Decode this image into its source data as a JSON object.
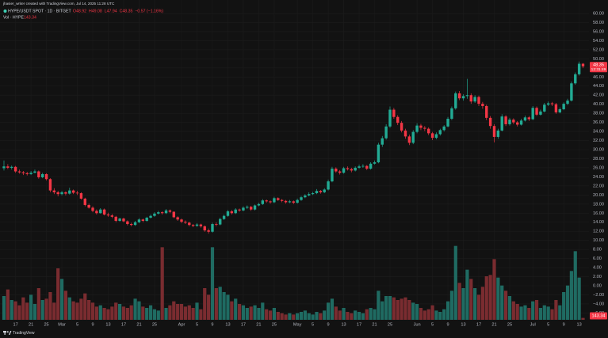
{
  "chart_data": {
    "type": "candlestick",
    "creator_line": "jhasier_writer created with TradingView.com, Jul 14, 2025 11:28 UTC",
    "symbol_line": "HYPE/USDT SPOT · 1D · BITGET",
    "ohlc_text": [
      "O48.92",
      "H49.08",
      "L47.94",
      "C48.35",
      "−0.57 (−1.16%)"
    ],
    "volume_label": "Vol · HYPE",
    "countdown": "12:31:49",
    "footer_brand": "TradingView",
    "up_color": "#22ab94",
    "down_color": "#f23645",
    "volume_up_color": "#1f6b62",
    "volume_down_color": "#7a2c30",
    "grid": true,
    "ylim": [
      -7.5,
      60.7
    ],
    "yticks": [
      {
        "value": 60,
        "label": "60.00"
      },
      {
        "value": 58,
        "label": "58.00"
      },
      {
        "value": 56,
        "label": "56.00"
      },
      {
        "value": 54,
        "label": "54.00"
      },
      {
        "value": 52,
        "label": "52.00"
      },
      {
        "value": 50,
        "label": "50.00"
      },
      {
        "value": 48,
        "label": "48.00"
      },
      {
        "value": 46,
        "label": "46.00"
      },
      {
        "value": 44,
        "label": "44.00"
      },
      {
        "value": 42,
        "label": "42.00"
      },
      {
        "value": 40,
        "label": "40.00"
      },
      {
        "value": 38,
        "label": "38.00"
      },
      {
        "value": 36,
        "label": "36.00"
      },
      {
        "value": 34,
        "label": "34.00"
      },
      {
        "value": 32,
        "label": "32.00"
      },
      {
        "value": 30,
        "label": "30.00"
      },
      {
        "value": 28,
        "label": "28.00"
      },
      {
        "value": 26,
        "label": "26.00"
      },
      {
        "value": 24,
        "label": "24.00"
      },
      {
        "value": 22,
        "label": "22.00"
      },
      {
        "value": 20,
        "label": "20.00"
      },
      {
        "value": 18,
        "label": "18.00"
      },
      {
        "value": 16,
        "label": "16.00"
      },
      {
        "value": 14,
        "label": "14.00"
      },
      {
        "value": 12,
        "label": "12.00"
      },
      {
        "value": 10,
        "label": "10.00"
      },
      {
        "value": 8,
        "label": "8.00"
      },
      {
        "value": 6,
        "label": "6.00"
      },
      {
        "value": 4,
        "label": "4.00"
      },
      {
        "value": 2,
        "label": "2.00"
      },
      {
        "value": 0,
        "label": "0.00"
      },
      {
        "value": -2,
        "label": "−2.00"
      },
      {
        "value": -4,
        "label": "−4.00"
      },
      {
        "value": -6,
        "label": "−6.00"
      }
    ],
    "volume_lim": [
      0,
      6000
    ],
    "categories": [
      null,
      null,
      null,
      "17",
      null,
      null,
      null,
      "21",
      null,
      null,
      null,
      "25",
      null,
      null,
      null,
      "Mar",
      null,
      null,
      null,
      "5",
      null,
      null,
      null,
      "9",
      null,
      null,
      null,
      "13",
      null,
      null,
      null,
      "17",
      null,
      null,
      null,
      "21",
      null,
      null,
      null,
      "25",
      null,
      null,
      null,
      null,
      null,
      null,
      "Apr",
      null,
      null,
      null,
      "5",
      null,
      null,
      null,
      "9",
      null,
      null,
      null,
      "13",
      null,
      null,
      null,
      "17",
      null,
      null,
      null,
      "21",
      null,
      null,
      null,
      "25",
      null,
      null,
      null,
      null,
      null,
      "May",
      null,
      null,
      null,
      "5",
      null,
      null,
      null,
      "9",
      null,
      null,
      null,
      "13",
      null,
      null,
      null,
      "17",
      null,
      null,
      null,
      "21",
      null,
      null,
      null,
      "25",
      null,
      null,
      null,
      null,
      null,
      null,
      "Jun",
      null,
      null,
      null,
      "5",
      null,
      null,
      null,
      "9",
      null,
      null,
      null,
      "13",
      null,
      null,
      null,
      "17",
      null,
      null,
      null,
      "21",
      null,
      null,
      null,
      "25",
      null,
      null,
      null,
      null,
      null,
      "Jul",
      null,
      null,
      null,
      "5",
      null,
      null,
      null,
      "9",
      null,
      null,
      null,
      "13",
      null
    ],
    "ohlc": [
      [
        25.9,
        27.6,
        25.4,
        26.3
      ],
      [
        26.3,
        26.8,
        25.7,
        26.0
      ],
      [
        26.0,
        26.5,
        25.6,
        26.2
      ],
      [
        26.2,
        26.4,
        24.9,
        25.2
      ],
      [
        25.2,
        25.6,
        24.7,
        25.0
      ],
      [
        25.0,
        25.3,
        24.4,
        24.8
      ],
      [
        24.8,
        25.1,
        24.3,
        24.6
      ],
      [
        24.6,
        25.3,
        24.4,
        24.9
      ],
      [
        24.9,
        25.6,
        24.8,
        25.2
      ],
      [
        25.2,
        25.4,
        23.6,
        23.9
      ],
      [
        23.9,
        24.9,
        23.7,
        24.6
      ],
      [
        24.6,
        24.8,
        23.2,
        23.5
      ],
      [
        23.5,
        23.7,
        20.6,
        21.0
      ],
      [
        21.0,
        21.5,
        20.2,
        20.6
      ],
      [
        20.6,
        20.9,
        19.7,
        20.2
      ],
      [
        20.2,
        20.9,
        19.9,
        20.6
      ],
      [
        20.6,
        20.8,
        19.9,
        20.3
      ],
      [
        20.3,
        21.6,
        20.1,
        21.0
      ],
      [
        21.0,
        21.2,
        20.2,
        20.5
      ],
      [
        20.5,
        20.9,
        20.0,
        20.4
      ],
      [
        20.4,
        20.6,
        19.0,
        19.2
      ],
      [
        19.2,
        19.4,
        17.5,
        17.8
      ],
      [
        17.8,
        18.1,
        17.0,
        17.2
      ],
      [
        17.2,
        17.5,
        16.2,
        16.5
      ],
      [
        16.5,
        16.8,
        15.7,
        16.0
      ],
      [
        16.0,
        17.1,
        15.9,
        16.8
      ],
      [
        16.8,
        17.0,
        15.5,
        15.7
      ],
      [
        15.7,
        16.1,
        15.2,
        15.5
      ],
      [
        15.5,
        15.8,
        14.9,
        15.2
      ],
      [
        15.2,
        15.4,
        14.0,
        14.3
      ],
      [
        14.3,
        15.0,
        14.1,
        14.8
      ],
      [
        14.8,
        15.0,
        14.0,
        14.2
      ],
      [
        14.2,
        14.4,
        13.3,
        13.6
      ],
      [
        13.6,
        13.9,
        13.1,
        13.4
      ],
      [
        13.4,
        14.3,
        13.2,
        14.0
      ],
      [
        14.0,
        14.9,
        13.8,
        14.6
      ],
      [
        14.6,
        14.8,
        14.0,
        14.3
      ],
      [
        14.3,
        15.2,
        14.1,
        15.0
      ],
      [
        15.0,
        15.7,
        14.8,
        15.4
      ],
      [
        15.4,
        16.2,
        15.2,
        15.9
      ],
      [
        15.9,
        16.5,
        15.7,
        16.2
      ],
      [
        16.2,
        16.4,
        15.7,
        16.0
      ],
      [
        16.0,
        16.9,
        15.8,
        16.6
      ],
      [
        16.6,
        16.8,
        16.0,
        16.3
      ],
      [
        16.3,
        16.4,
        14.9,
        15.1
      ],
      [
        15.1,
        15.3,
        14.3,
        14.6
      ],
      [
        14.6,
        14.8,
        13.8,
        14.1
      ],
      [
        14.1,
        14.4,
        13.6,
        13.9
      ],
      [
        13.9,
        14.1,
        13.1,
        13.4
      ],
      [
        13.4,
        13.6,
        12.9,
        13.2
      ],
      [
        13.2,
        13.8,
        13.0,
        13.5
      ],
      [
        13.5,
        13.7,
        12.8,
        13.1
      ],
      [
        13.1,
        13.3,
        11.9,
        12.2
      ],
      [
        12.2,
        12.6,
        11.5,
        11.9
      ],
      [
        11.9,
        13.9,
        11.7,
        13.6
      ],
      [
        13.6,
        14.0,
        13.1,
        13.5
      ],
      [
        13.5,
        15.0,
        13.3,
        14.7
      ],
      [
        14.7,
        15.7,
        14.5,
        15.4
      ],
      [
        15.4,
        16.7,
        15.2,
        16.4
      ],
      [
        16.4,
        16.7,
        15.7,
        16.0
      ],
      [
        16.0,
        17.1,
        15.8,
        16.8
      ],
      [
        16.8,
        17.0,
        16.3,
        16.6
      ],
      [
        16.6,
        17.5,
        16.4,
        17.2
      ],
      [
        17.2,
        17.7,
        16.9,
        17.4
      ],
      [
        17.4,
        17.6,
        16.5,
        16.8
      ],
      [
        16.8,
        17.9,
        16.6,
        17.7
      ],
      [
        17.7,
        18.3,
        17.5,
        18.0
      ],
      [
        18.0,
        19.1,
        17.8,
        18.8
      ],
      [
        18.8,
        19.0,
        18.3,
        18.6
      ],
      [
        18.6,
        18.8,
        18.1,
        18.4
      ],
      [
        18.4,
        19.6,
        18.2,
        19.3
      ],
      [
        19.3,
        19.5,
        18.7,
        18.9
      ],
      [
        18.9,
        19.1,
        18.4,
        18.7
      ],
      [
        18.7,
        18.9,
        18.1,
        18.4
      ],
      [
        18.4,
        18.9,
        18.2,
        18.6
      ],
      [
        18.6,
        18.8,
        18.0,
        18.3
      ],
      [
        18.3,
        19.2,
        18.1,
        18.9
      ],
      [
        18.9,
        19.8,
        18.7,
        19.5
      ],
      [
        19.5,
        20.2,
        19.3,
        19.9
      ],
      [
        19.9,
        20.6,
        19.7,
        20.2
      ],
      [
        20.2,
        20.7,
        20.0,
        20.4
      ],
      [
        20.4,
        21.3,
        20.2,
        20.9
      ],
      [
        20.9,
        21.1,
        20.3,
        20.6
      ],
      [
        20.6,
        21.5,
        20.4,
        21.2
      ],
      [
        21.2,
        23.4,
        21.0,
        23.0
      ],
      [
        23.0,
        26.2,
        22.8,
        25.8
      ],
      [
        25.8,
        26.1,
        24.9,
        25.2
      ],
      [
        25.2,
        25.5,
        24.5,
        24.9
      ],
      [
        24.9,
        26.2,
        24.7,
        25.9
      ],
      [
        25.9,
        26.3,
        25.4,
        25.7
      ],
      [
        25.7,
        26.0,
        25.0,
        25.4
      ],
      [
        25.4,
        26.3,
        25.2,
        26.0
      ],
      [
        26.0,
        26.7,
        25.8,
        26.3
      ],
      [
        26.3,
        26.8,
        26.0,
        26.4
      ],
      [
        26.4,
        26.6,
        25.5,
        25.8
      ],
      [
        25.8,
        27.2,
        25.6,
        26.9
      ],
      [
        26.9,
        27.6,
        26.7,
        27.2
      ],
      [
        27.2,
        31.5,
        27.0,
        31.1
      ],
      [
        31.1,
        33.0,
        30.6,
        32.5
      ],
      [
        32.5,
        35.6,
        32.2,
        35.1
      ],
      [
        35.1,
        39.5,
        34.8,
        38.8
      ],
      [
        38.8,
        39.2,
        36.8,
        37.2
      ],
      [
        37.2,
        37.6,
        35.4,
        35.9
      ],
      [
        35.9,
        36.3,
        33.8,
        34.2
      ],
      [
        34.2,
        34.6,
        32.4,
        32.9
      ],
      [
        32.9,
        33.3,
        31.0,
        31.5
      ],
      [
        31.5,
        34.3,
        31.2,
        33.9
      ],
      [
        33.9,
        35.8,
        33.6,
        35.3
      ],
      [
        35.3,
        35.7,
        34.3,
        34.8
      ],
      [
        34.8,
        35.2,
        34.1,
        34.6
      ],
      [
        34.6,
        34.9,
        33.2,
        33.6
      ],
      [
        33.6,
        33.9,
        32.1,
        32.6
      ],
      [
        32.6,
        33.8,
        32.3,
        33.4
      ],
      [
        33.4,
        34.6,
        33.1,
        34.3
      ],
      [
        34.3,
        35.4,
        34.0,
        35.1
      ],
      [
        35.1,
        37.2,
        34.9,
        36.8
      ],
      [
        36.8,
        39.5,
        36.5,
        39.1
      ],
      [
        39.1,
        42.8,
        38.8,
        42.4
      ],
      [
        42.4,
        42.9,
        40.9,
        41.3
      ],
      [
        41.3,
        42.2,
        40.8,
        41.8
      ],
      [
        41.8,
        45.6,
        41.2,
        42.0
      ],
      [
        42.0,
        42.4,
        40.1,
        40.6
      ],
      [
        40.6,
        42.0,
        40.3,
        41.6
      ],
      [
        41.6,
        41.9,
        39.6,
        40.1
      ],
      [
        40.1,
        40.5,
        39.0,
        39.6
      ],
      [
        39.6,
        39.9,
        36.5,
        37.0
      ],
      [
        37.0,
        37.4,
        34.6,
        35.2
      ],
      [
        35.2,
        35.6,
        31.6,
        32.8
      ],
      [
        32.8,
        34.6,
        32.4,
        34.2
      ],
      [
        34.2,
        37.8,
        34.0,
        37.3
      ],
      [
        37.3,
        37.6,
        35.2,
        35.6
      ],
      [
        35.6,
        37.0,
        35.3,
        36.6
      ],
      [
        36.6,
        36.9,
        35.6,
        36.0
      ],
      [
        36.0,
        36.3,
        35.1,
        35.5
      ],
      [
        35.5,
        36.8,
        35.3,
        36.4
      ],
      [
        36.4,
        37.5,
        36.2,
        37.1
      ],
      [
        37.1,
        37.4,
        36.3,
        36.7
      ],
      [
        36.7,
        39.6,
        36.5,
        39.2
      ],
      [
        39.2,
        39.5,
        37.4,
        37.7
      ],
      [
        37.7,
        38.8,
        37.5,
        38.4
      ],
      [
        38.4,
        40.3,
        38.2,
        39.9
      ],
      [
        39.9,
        40.6,
        39.6,
        40.2
      ],
      [
        40.2,
        40.5,
        39.6,
        40.0
      ],
      [
        40.0,
        40.3,
        37.9,
        38.2
      ],
      [
        38.2,
        39.3,
        38.0,
        38.9
      ],
      [
        38.9,
        40.4,
        38.7,
        40.1
      ],
      [
        40.1,
        41.2,
        39.8,
        40.8
      ],
      [
        40.8,
        45.0,
        40.6,
        44.6
      ],
      [
        44.6,
        47.0,
        44.3,
        46.6
      ],
      [
        46.6,
        49.4,
        46.3,
        48.92
      ],
      [
        48.92,
        49.08,
        47.94,
        48.35
      ]
    ],
    "volume": [
      1800,
      2300,
      1500,
      1400,
      1100,
      1700,
      1300,
      1900,
      1200,
      2400,
      1500,
      1600,
      2100,
      1300,
      3900,
      3100,
      2200,
      1700,
      1400,
      1300,
      1600,
      2000,
      1500,
      1300,
      1000,
      1100,
      900,
      800,
      1000,
      1300,
      1200,
      1000,
      900,
      1100,
      1600,
      1400,
      1000,
      900,
      1100,
      800,
      700,
      5500,
      900,
      1100,
      1400,
      1200,
      1200,
      1000,
      1100,
      900,
      1300,
      800,
      2400,
      1900,
      5500,
      2400,
      2500,
      2100,
      1900,
      1400,
      1600,
      1200,
      1100,
      900,
      1000,
      1100,
      900,
      1300,
      800,
      700,
      900,
      600,
      500,
      400,
      500,
      400,
      500,
      600,
      700,
      500,
      400,
      600,
      500,
      700,
      1300,
      1600,
      1000,
      700,
      900,
      600,
      500,
      700,
      600,
      500,
      800,
      900,
      800,
      2200,
      1400,
      1800,
      1800,
      1700,
      1500,
      1600,
      1700,
      1500,
      1300,
      1200,
      900,
      700,
      800,
      1100,
      700,
      600,
      800,
      1400,
      2200,
      5600,
      2800,
      2400,
      3800,
      3100,
      2400,
      1900,
      2500,
      3300,
      3400,
      4600,
      3200,
      2600,
      2200,
      1800,
      1400,
      1200,
      1000,
      1100,
      900,
      1400,
      1500,
      900,
      1100,
      1000,
      800,
      1500,
      1100,
      2100,
      2600,
      3700,
      5200,
      3200,
      143.34
    ]
  }
}
